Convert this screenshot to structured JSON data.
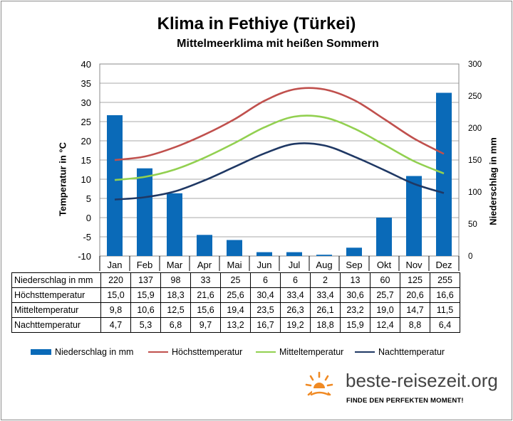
{
  "chart_data": {
    "type": "bar+line",
    "title": "Klima in Fethiye (Türkei)",
    "subtitle": "Mittelmeerklima mit heißen Sommern",
    "ylabel_left": "Temperatur in °C",
    "ylabel_right": "Niederschlag in mm",
    "ylim_left": [
      -10,
      40
    ],
    "ylim_right": [
      0,
      300
    ],
    "yticks_left": [
      "40",
      "35",
      "30",
      "25",
      "20",
      "15",
      "10",
      "5",
      "0",
      "-5",
      "-10"
    ],
    "yticks_right": [
      "300",
      "250",
      "200",
      "150",
      "100",
      "50",
      "0"
    ],
    "categories": [
      "Jan",
      "Feb",
      "Mar",
      "Apr",
      "Mai",
      "Jun",
      "Jul",
      "Aug",
      "Sep",
      "Okt",
      "Nov",
      "Dez"
    ],
    "bars": {
      "name": "Niederschlag in mm",
      "color": "#0a6ab8",
      "values": [
        220,
        137,
        98,
        33,
        25,
        6,
        6,
        2,
        13,
        60,
        125,
        255
      ]
    },
    "series": [
      {
        "name": "Höchsttemperatur",
        "color": "#c0504d",
        "values": [
          15.0,
          15.9,
          18.3,
          21.6,
          25.6,
          30.4,
          33.4,
          33.4,
          30.6,
          25.7,
          20.6,
          16.6
        ]
      },
      {
        "name": "Mitteltemperatur",
        "color": "#92d050",
        "values": [
          9.8,
          10.6,
          12.5,
          15.6,
          19.4,
          23.5,
          26.3,
          26.1,
          23.2,
          19.0,
          14.7,
          11.5
        ]
      },
      {
        "name": "Nachttemperatur",
        "color": "#1f3864",
        "values": [
          4.7,
          5.3,
          6.8,
          9.7,
          13.2,
          16.7,
          19.2,
          18.8,
          15.9,
          12.4,
          8.8,
          6.4
        ]
      }
    ],
    "grid": true,
    "legend": "bottom"
  },
  "table": {
    "rows": [
      {
        "label": "Niederschlag in mm",
        "cells": [
          "220",
          "137",
          "98",
          "33",
          "25",
          "6",
          "6",
          "2",
          "13",
          "60",
          "125",
          "255"
        ]
      },
      {
        "label": "Höchsttemperatur",
        "cells": [
          "15,0",
          "15,9",
          "18,3",
          "21,6",
          "25,6",
          "30,4",
          "33,4",
          "33,4",
          "30,6",
          "25,7",
          "20,6",
          "16,6"
        ]
      },
      {
        "label": "Mitteltemperatur",
        "cells": [
          "9,8",
          "10,6",
          "12,5",
          "15,6",
          "19,4",
          "23,5",
          "26,3",
          "26,1",
          "23,2",
          "19,0",
          "14,7",
          "11,5"
        ]
      },
      {
        "label": "Nachttemperatur",
        "cells": [
          "4,7",
          "5,3",
          "6,8",
          "9,7",
          "13,2",
          "16,7",
          "19,2",
          "18,8",
          "15,9",
          "12,4",
          "8,8",
          "6,4"
        ]
      }
    ]
  },
  "legend": {
    "precip": "Niederschlag in mm",
    "high": "Höchsttemperatur",
    "mean": "Mitteltemperatur",
    "night": "Nachttemperatur"
  },
  "logo": {
    "name": "beste-reisezeit.org",
    "tagline": "FINDE DEN PERFEKTEN MOMENT!",
    "icon": "sun-icon",
    "color": "#f08a24"
  }
}
